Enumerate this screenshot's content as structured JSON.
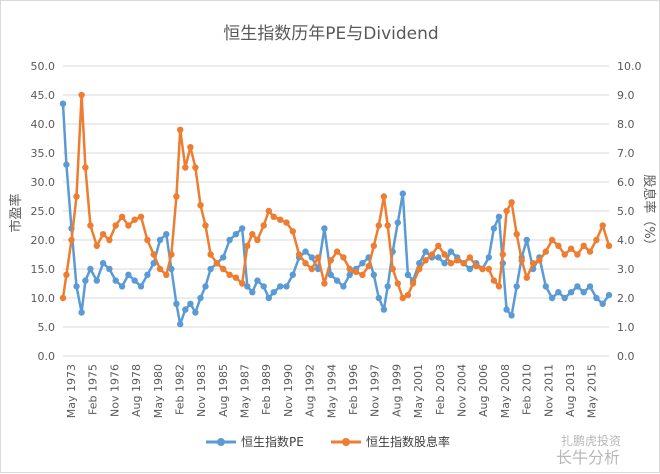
{
  "chart_data": {
    "type": "line",
    "title": "恒生指数历年PE与Dividend",
    "ylabel": "市盈率",
    "y2label": "股息率（%）",
    "ylim": [
      0,
      50
    ],
    "y2lim": [
      0,
      10
    ],
    "yticks": [
      "0.0",
      "5.0",
      "10.0",
      "15.0",
      "20.0",
      "25.0",
      "30.0",
      "35.0",
      "40.0",
      "45.0",
      "50.0"
    ],
    "y2ticks": [
      "0.0",
      "1.0",
      "2.0",
      "3.0",
      "4.0",
      "5.0",
      "6.0",
      "7.0",
      "8.0",
      "9.0",
      "10.0"
    ],
    "xticks": [
      "May 1973",
      "Feb 1975",
      "Nov 1976",
      "Aug 1978",
      "May 1980",
      "Feb 1982",
      "Nov 1983",
      "Aug 1985",
      "May 1987",
      "Feb 1989",
      "Nov 1990",
      "Aug 1992",
      "May 1994",
      "Feb 1996",
      "Nov 1997",
      "Aug 1999",
      "May 2001",
      "Feb 2003",
      "Nov 2004",
      "Aug 2006",
      "May 2008",
      "Feb 2010",
      "Nov 2011",
      "Aug 2013",
      "May 2015"
    ],
    "x": [
      1973.33,
      1973.6,
      1974.0,
      1974.4,
      1974.8,
      1975.1,
      1975.5,
      1976.0,
      1976.5,
      1977.0,
      1977.5,
      1978.0,
      1978.5,
      1979.0,
      1979.5,
      1980.0,
      1980.5,
      1981.0,
      1981.5,
      1981.9,
      1982.3,
      1982.6,
      1983.0,
      1983.4,
      1983.8,
      1984.2,
      1984.6,
      1985.0,
      1985.5,
      1986.0,
      1986.5,
      1987.0,
      1987.5,
      1987.9,
      1988.3,
      1988.7,
      1989.2,
      1989.6,
      1990.0,
      1990.5,
      1991.0,
      1991.5,
      1992.0,
      1992.5,
      1993.0,
      1993.5,
      1994.0,
      1994.5,
      1995.0,
      1995.5,
      1996.0,
      1996.5,
      1997.0,
      1997.5,
      1997.9,
      1998.3,
      1998.7,
      1999.0,
      1999.4,
      1999.8,
      2000.2,
      2000.6,
      2001.0,
      2001.5,
      2002.0,
      2002.5,
      2003.0,
      2003.5,
      2004.0,
      2004.5,
      2005.0,
      2005.5,
      2006.0,
      2006.5,
      2007.0,
      2007.4,
      2007.8,
      2008.1,
      2008.4,
      2008.8,
      2009.2,
      2009.6,
      2010.0,
      2010.5,
      2011.0,
      2011.5,
      2012.0,
      2012.5,
      2013.0,
      2013.5,
      2014.0,
      2014.5,
      2015.0,
      2015.5,
      2016.0,
      2016.5
    ],
    "series": [
      {
        "name": "恒生指数PE",
        "axis": "left",
        "color": "#5b9bd5",
        "values": [
          43.5,
          33,
          22,
          12,
          7.5,
          13,
          15,
          13,
          16,
          15,
          13,
          12,
          14,
          13,
          12,
          14,
          16,
          20,
          21,
          15,
          9,
          5.5,
          8,
          9,
          7.5,
          10,
          12,
          15,
          16,
          17,
          20,
          21,
          22,
          12,
          11,
          13,
          12,
          10,
          11,
          12,
          12,
          14,
          17,
          18,
          17,
          15,
          22,
          14,
          13,
          12,
          14,
          15,
          16,
          17,
          14,
          10,
          8,
          12,
          18,
          23,
          28,
          14,
          13,
          16,
          18,
          17,
          17,
          16,
          18,
          17,
          16,
          15,
          16,
          15,
          17,
          22,
          24,
          16,
          8,
          7,
          12,
          17,
          20,
          15,
          17,
          12,
          10,
          11,
          10,
          11,
          12,
          11,
          12,
          10,
          9,
          10.5
        ]
      },
      {
        "name": "恒生指数股息率",
        "axis": "right",
        "color": "#ed7d31",
        "values": [
          2.0,
          2.8,
          4.0,
          5.5,
          9.0,
          6.5,
          4.5,
          3.8,
          4.2,
          4.0,
          4.5,
          4.8,
          4.5,
          4.7,
          4.8,
          4.0,
          3.5,
          3.0,
          2.8,
          3.5,
          5.5,
          7.8,
          6.5,
          7.2,
          6.5,
          5.2,
          4.5,
          3.5,
          3.2,
          3.0,
          2.8,
          2.7,
          2.5,
          3.8,
          4.2,
          4.0,
          4.5,
          5.0,
          4.8,
          4.7,
          4.6,
          4.3,
          3.5,
          3.2,
          3.0,
          3.4,
          2.5,
          3.3,
          3.6,
          3.4,
          3.0,
          2.9,
          2.8,
          3.1,
          3.8,
          4.5,
          5.5,
          4.5,
          3.0,
          2.5,
          2.0,
          2.1,
          2.5,
          3.0,
          3.3,
          3.5,
          3.8,
          3.5,
          3.2,
          3.3,
          3.2,
          3.4,
          3.1,
          3.0,
          3.0,
          2.6,
          2.4,
          3.5,
          5.0,
          5.3,
          4.2,
          3.3,
          2.7,
          3.2,
          3.3,
          3.6,
          4.0,
          3.8,
          3.5,
          3.7,
          3.5,
          3.8,
          3.6,
          4.0,
          4.5,
          3.8
        ]
      }
    ],
    "legend_position": "bottom"
  },
  "watermark": "长牛分析",
  "watermark2": "扎鹏虎投资"
}
